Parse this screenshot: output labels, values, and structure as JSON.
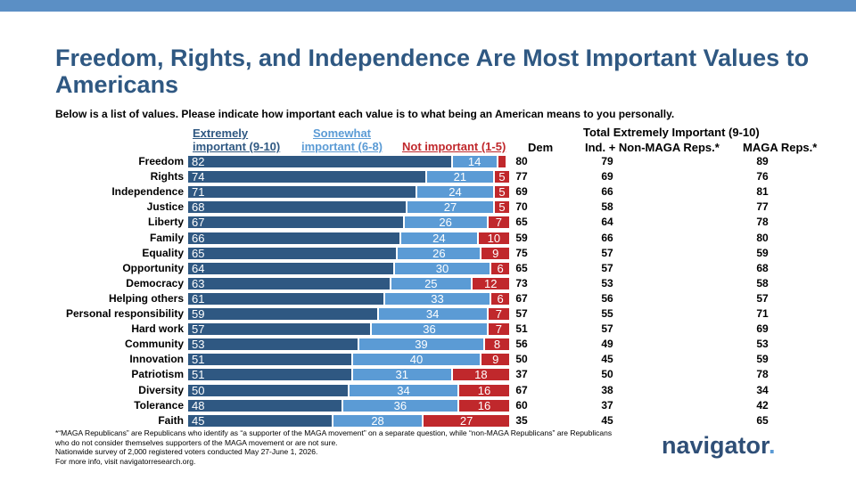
{
  "title": "Freedom, Rights, and Independence Are Most Important Values to Americans",
  "subtitle": "Below is a list of values. Please indicate how important each value is to what being an American means to you personally.",
  "legend": {
    "extremely_line1": "Extremely",
    "extremely_line2": "important (9-10)",
    "somewhat_line1": "Somewhat",
    "somewhat_line2": "important (6-8)",
    "not": "Not important (1-5)"
  },
  "columns": {
    "total_header": "Total Extremely Important (9-10)",
    "dem": "Dem",
    "ind": "Ind. + Non-MAGA Reps.*",
    "maga": "MAGA Reps.*"
  },
  "colors": {
    "extremely": "#2f5882",
    "somewhat": "#5b9bd5",
    "not": "#c0282c",
    "title": "#2f5882"
  },
  "chart_data": {
    "type": "bar",
    "stacked": true,
    "orientation": "horizontal",
    "categories": [
      "Freedom",
      "Rights",
      "Independence",
      "Justice",
      "Liberty",
      "Family",
      "Equality",
      "Opportunity",
      "Democracy",
      "Helping others",
      "Personal responsibility",
      "Hard work",
      "Community",
      "Innovation",
      "Patriotism",
      "Diversity",
      "Tolerance",
      "Faith"
    ],
    "series": [
      {
        "name": "Extremely important (9-10)",
        "values": [
          82,
          74,
          71,
          68,
          67,
          66,
          65,
          64,
          63,
          61,
          59,
          57,
          53,
          51,
          51,
          50,
          48,
          45
        ]
      },
      {
        "name": "Somewhat important (6-8)",
        "values": [
          14,
          21,
          24,
          27,
          26,
          24,
          26,
          30,
          25,
          33,
          34,
          36,
          39,
          40,
          31,
          34,
          36,
          28
        ]
      },
      {
        "name": "Not important (1-5)",
        "values": [
          3,
          5,
          5,
          5,
          7,
          10,
          9,
          6,
          12,
          6,
          7,
          7,
          8,
          9,
          18,
          16,
          16,
          27
        ]
      }
    ],
    "labels_shown": [
      [
        "82",
        "74",
        "71",
        "68",
        "67",
        "66",
        "65",
        "64",
        "63",
        "61",
        "59",
        "57",
        "53",
        "51",
        "51",
        "50",
        "48",
        "45"
      ],
      [
        "14",
        "21",
        "24",
        "27",
        "26",
        "24",
        "26",
        "30",
        "25",
        "33",
        "34",
        "36",
        "39",
        "40",
        "31",
        "34",
        "36",
        "28"
      ],
      [
        "",
        "5",
        "5",
        "5",
        "7",
        "10",
        "9",
        "6",
        "12",
        "6",
        "7",
        "7",
        "8",
        "9",
        "18",
        "16",
        "16",
        "27"
      ]
    ],
    "table": {
      "dem": [
        "80",
        "77",
        "69",
        "70",
        "65",
        "59",
        "75",
        "65",
        "73",
        "67",
        "57",
        "51",
        "56",
        "50",
        "37",
        "67",
        "60",
        "35"
      ],
      "ind": [
        "79",
        "69",
        "66",
        "58",
        "64",
        "66",
        "57",
        "57",
        "53",
        "56",
        "55",
        "57",
        "49",
        "45",
        "50",
        "38",
        "37",
        "45"
      ],
      "maga": [
        "89",
        "76",
        "81",
        "77",
        "78",
        "80",
        "59",
        "68",
        "58",
        "57",
        "71",
        "69",
        "53",
        "59",
        "78",
        "34",
        "42",
        "65"
      ]
    }
  },
  "footnote": {
    "line1": "*“MAGA Republicans” are Republicans who identify as “a supporter of the MAGA movement” on a separate question, while “non-MAGA Republicans” are Republicans who do not consider themselves supporters of the MAGA movement or are not sure.",
    "line2": "Nationwide survey of 2,000 registered voters conducted May 27-June 1, 2026.",
    "line3": "For more info, visit navigatorresearch.org."
  },
  "logo": {
    "text": "navigator",
    "dot": "."
  }
}
